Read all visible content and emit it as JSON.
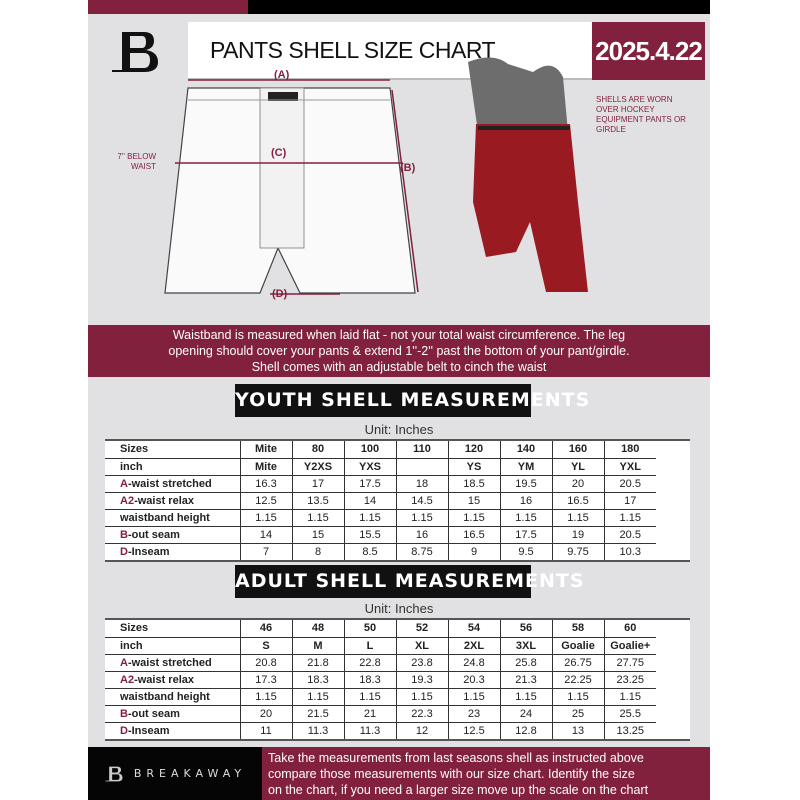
{
  "header": {
    "title": "PANTS SHELL SIZE CHART",
    "date": "2025.4.22"
  },
  "diagram": {
    "label_a": "(A)",
    "label_b": "(B)",
    "label_c": "(C)",
    "label_d": "(D)",
    "below_waist_note": "7'' BELOW WAIST",
    "worn_note": "SHELLS ARE WORN OVER HOCKEY EQUIPMENT PANTS OR GIRDLE"
  },
  "banner": {
    "lines": [
      "Waistband is measured when laid flat - not your total waist circumference. The leg",
      "opening should cover your pants & extend 1''-2'' past the bottom of your pant/girdle.",
      "Shell comes with an adjustable belt to cinch the waist"
    ]
  },
  "youth": {
    "heading": "YOUTH SHELL MEASUREMENTS",
    "unit": "Unit: Inches",
    "rows": [
      {
        "prefix": "",
        "label": "Sizes",
        "values": [
          "Mite",
          "80",
          "100",
          "110",
          "120",
          "140",
          "160",
          "180"
        ]
      },
      {
        "prefix": "",
        "label": "inch",
        "values": [
          "Mite",
          "Y2XS",
          "YXS",
          "",
          "YS",
          "YM",
          "YL",
          "YXL"
        ]
      },
      {
        "prefix": "A",
        "label": "-waist stretched",
        "values": [
          "16.3",
          "17",
          "17.5",
          "18",
          "18.5",
          "19.5",
          "20",
          "20.5"
        ]
      },
      {
        "prefix": "A2",
        "label": "-waist relax",
        "values": [
          "12.5",
          "13.5",
          "14",
          "14.5",
          "15",
          "16",
          "16.5",
          "17"
        ]
      },
      {
        "prefix": "",
        "label": "waistband height",
        "values": [
          "1.15",
          "1.15",
          "1.15",
          "1.15",
          "1.15",
          "1.15",
          "1.15",
          "1.15"
        ]
      },
      {
        "prefix": "B",
        "label": "-out seam",
        "values": [
          "14",
          "15",
          "15.5",
          "16",
          "16.5",
          "17.5",
          "19",
          "20.5"
        ]
      },
      {
        "prefix": "D",
        "label": "-Inseam",
        "values": [
          "7",
          "8",
          "8.5",
          "8.75",
          "9",
          "9.5",
          "9.75",
          "10.3"
        ]
      }
    ]
  },
  "adult": {
    "heading": "ADULT SHELL MEASUREMENTS",
    "unit": "Unit: Inches",
    "rows": [
      {
        "prefix": "",
        "label": "Sizes",
        "values": [
          "46",
          "48",
          "50",
          "52",
          "54",
          "56",
          "58",
          "60"
        ]
      },
      {
        "prefix": "",
        "label": "inch",
        "values": [
          "S",
          "M",
          "L",
          "XL",
          "2XL",
          "3XL",
          "Goalie",
          "Goalie+"
        ]
      },
      {
        "prefix": "A",
        "label": "-waist stretched",
        "values": [
          "20.8",
          "21.8",
          "22.8",
          "23.8",
          "24.8",
          "25.8",
          "26.75",
          "27.75"
        ]
      },
      {
        "prefix": "A2",
        "label": "-waist relax",
        "values": [
          "17.3",
          "18.3",
          "18.3",
          "19.3",
          "20.3",
          "21.3",
          "22.25",
          "23.25"
        ]
      },
      {
        "prefix": "",
        "label": "waistband height",
        "values": [
          "1.15",
          "1.15",
          "1.15",
          "1.15",
          "1.15",
          "1.15",
          "1.15",
          "1.15"
        ]
      },
      {
        "prefix": "B",
        "label": "-out seam",
        "values": [
          "20",
          "21.5",
          "21",
          "22.3",
          "23",
          "24",
          "25",
          "25.5"
        ]
      },
      {
        "prefix": "D",
        "label": "-Inseam",
        "values": [
          "11",
          "11.3",
          "11.3",
          "12",
          "12.5",
          "12.8",
          "13",
          "13.25"
        ]
      }
    ]
  },
  "footer": {
    "brand": "BREAKAWAY",
    "lines": [
      "Take the measurements from last seasons shell as instructed above",
      "compare those measurements  with our size chart. Identify the size",
      "on the chart, if you need a larger size move up the scale on the chart"
    ]
  },
  "colors": {
    "accent": "#82213d",
    "dark": "#000000",
    "background": "#e1e1e4"
  }
}
